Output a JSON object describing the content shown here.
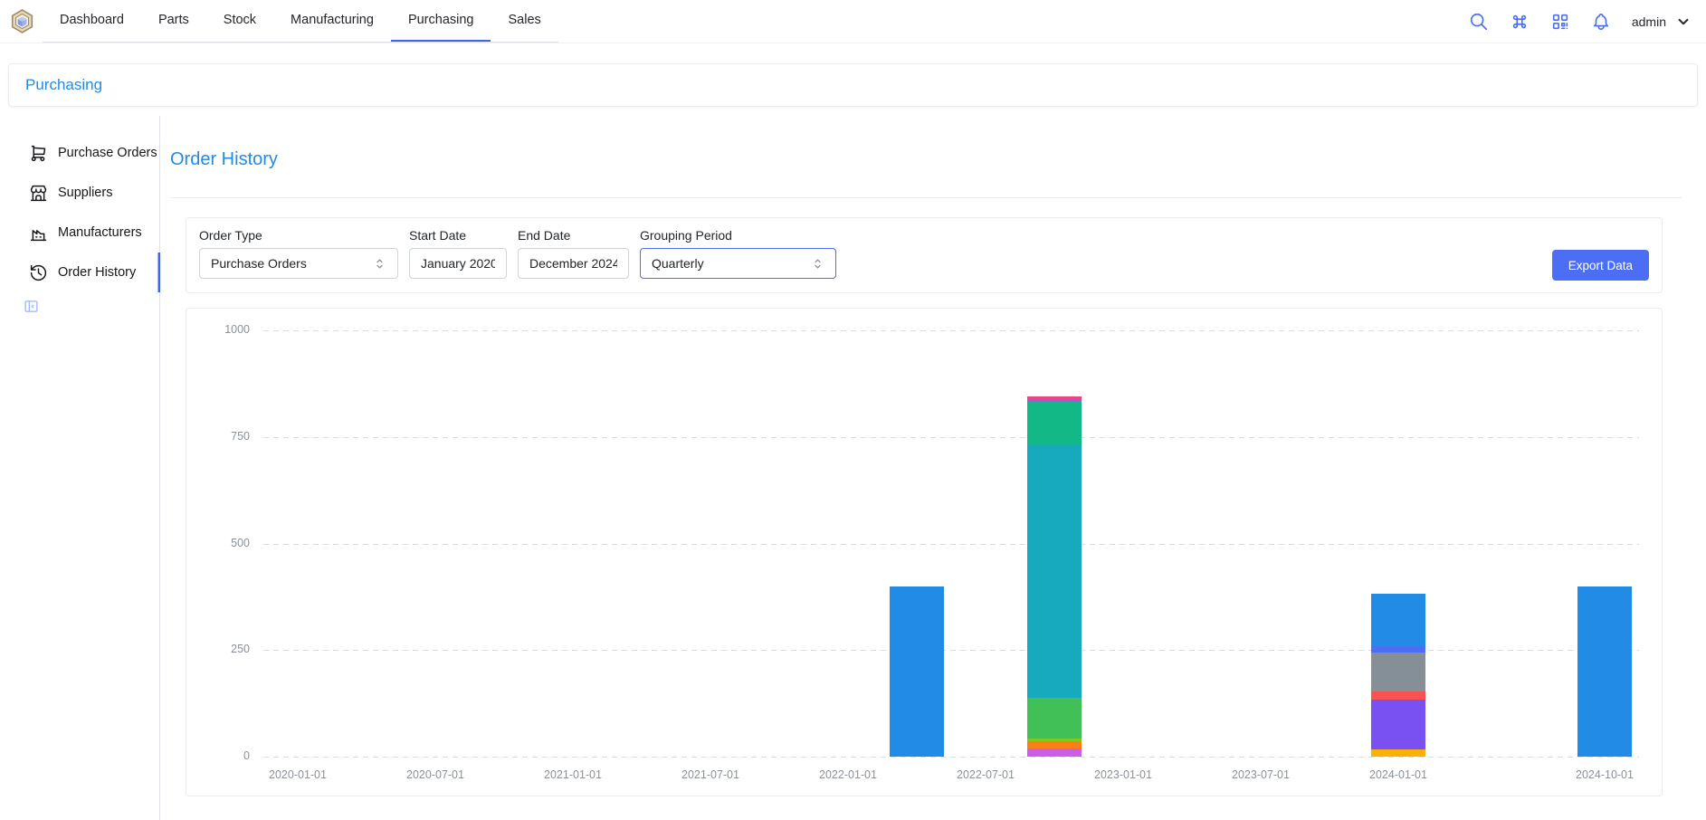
{
  "navbar": {
    "tabs": [
      {
        "label": "Dashboard"
      },
      {
        "label": "Parts"
      },
      {
        "label": "Stock"
      },
      {
        "label": "Manufacturing"
      },
      {
        "label": "Purchasing"
      },
      {
        "label": "Sales"
      }
    ],
    "active_tab": "Purchasing",
    "action_icons": [
      "search-icon",
      "command-icon",
      "qrcode-scan-icon",
      "bell-icon"
    ],
    "user": "admin"
  },
  "breadcrumb": {
    "label": "Purchasing"
  },
  "sidebar": {
    "items": [
      {
        "label": "Purchase Orders",
        "icon": "shopping-cart-icon",
        "active": false
      },
      {
        "label": "Suppliers",
        "icon": "building-store-icon",
        "active": false
      },
      {
        "label": "Manufacturers",
        "icon": "factory-icon",
        "active": false
      },
      {
        "label": "Order History",
        "icon": "history-icon",
        "active": true
      }
    ],
    "collapse_icon": "sidebar-collapse-icon"
  },
  "main": {
    "title": "Order History",
    "filters": {
      "order_type": {
        "label": "Order Type",
        "value": "Purchase Orders",
        "type": "select"
      },
      "start_date": {
        "label": "Start Date",
        "value": "January 2020",
        "type": "month-input"
      },
      "end_date": {
        "label": "End Date",
        "value": "December 2024",
        "type": "month-input"
      },
      "grouping": {
        "label": "Grouping Period",
        "value": "Quarterly",
        "type": "select",
        "focused": true
      }
    },
    "export_label": "Export Data"
  },
  "colors": {
    "accent_indigo": "#4263eb",
    "icon_indigo": "#4c6ef5",
    "primary_blue": "#228be6",
    "axis_gray": "#8a9199",
    "grid_gray": "#d9dee3"
  },
  "chart_data": {
    "type": "bar",
    "stacked": true,
    "title": "",
    "xlabel": "",
    "ylabel": "",
    "ylim": [
      0,
      1000
    ],
    "y_ticks": [
      0,
      250,
      500,
      750,
      1000
    ],
    "grid": "horizontal-dashed",
    "legend": "none",
    "x_axis_type": "time",
    "x_domain_months": [
      -1.5,
      58.5
    ],
    "x_ticks": [
      {
        "label": "2020-01-01",
        "month": 0
      },
      {
        "label": "2020-07-01",
        "month": 6
      },
      {
        "label": "2021-01-01",
        "month": 12
      },
      {
        "label": "2021-07-01",
        "month": 18
      },
      {
        "label": "2022-01-01",
        "month": 24
      },
      {
        "label": "2022-07-01",
        "month": 30
      },
      {
        "label": "2023-01-01",
        "month": 36
      },
      {
        "label": "2023-07-01",
        "month": 42
      },
      {
        "label": "2024-01-01",
        "month": 48
      },
      {
        "label": "2024-10-01",
        "month": 57
      }
    ],
    "bars": [
      {
        "date": "2022-04-01",
        "month": 27,
        "total": 400,
        "segments_bottom_to_top": [
          {
            "value": 400,
            "color": "#228be6"
          }
        ]
      },
      {
        "date": "2022-10-01",
        "month": 33,
        "total": 845,
        "segments_bottom_to_top": [
          {
            "value": 20,
            "color": "#cc5de8"
          },
          {
            "value": 17,
            "color": "#fd7e14"
          },
          {
            "value": 5,
            "color": "#82c91e"
          },
          {
            "value": 97,
            "color": "#40c057"
          },
          {
            "value": 593,
            "color": "#17aabf"
          },
          {
            "value": 100,
            "color": "#12b886"
          },
          {
            "value": 5,
            "color": "#be4bdb"
          },
          {
            "value": 8,
            "color": "#e64980"
          }
        ]
      },
      {
        "date": "2024-01-01",
        "month": 48,
        "total": 382,
        "segments_bottom_to_top": [
          {
            "value": 17,
            "color": "#fab005"
          },
          {
            "value": 117,
            "color": "#7950f2"
          },
          {
            "value": 19,
            "color": "#fa5252"
          },
          {
            "value": 91,
            "color": "#868e96"
          },
          {
            "value": 15,
            "color": "#4c6ef5"
          },
          {
            "value": 123,
            "color": "#228be6"
          }
        ]
      },
      {
        "date": "2024-10-01",
        "month": 57,
        "total": 400,
        "segments_bottom_to_top": [
          {
            "value": 400,
            "color": "#228be6"
          }
        ]
      }
    ]
  }
}
